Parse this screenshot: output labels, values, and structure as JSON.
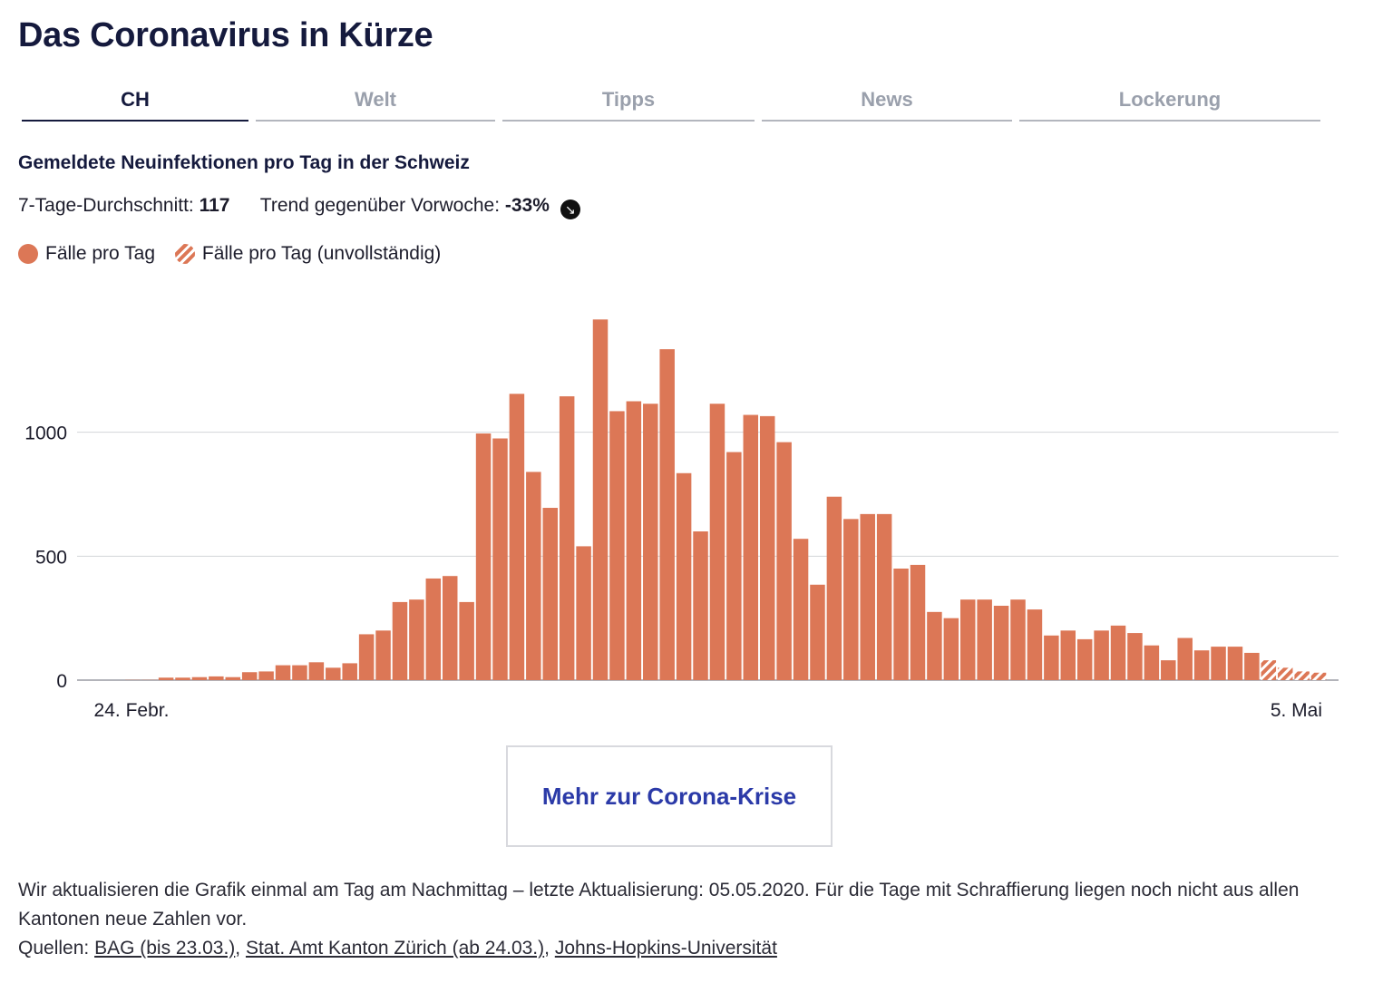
{
  "page": {
    "title": "Das Coronavirus in Kürze"
  },
  "tabs": [
    {
      "label": "CH",
      "active": true
    },
    {
      "label": "Welt",
      "active": false
    },
    {
      "label": "Tipps",
      "active": false
    },
    {
      "label": "News",
      "active": false
    },
    {
      "label": "Lockerung",
      "active": false
    }
  ],
  "header": {
    "subtitle": "Gemeldete Neuinfektionen pro Tag in der Schweiz",
    "avg_label": "7-Tage-Durchschnitt:",
    "avg_value": "117",
    "trend_label": "Trend gegenüber Vorwoche:",
    "trend_value": "-33%",
    "trend_icon": "arrow-down-right-icon"
  },
  "legend": {
    "solid_label": "Fälle pro Tag",
    "hatched_label": "Fälle pro Tag (unvollständig)"
  },
  "colors": {
    "bar": "#dc7756",
    "grid": "#d3d4d8",
    "accent": "#2b3aa8",
    "title": "#151a3d"
  },
  "chart_data": {
    "type": "bar",
    "title": "Gemeldete Neuinfektionen pro Tag in der Schweiz",
    "xlabel": "",
    "ylabel": "",
    "x_tick_labels": [
      "24. Febr.",
      "5. Mai"
    ],
    "y_ticks": [
      0,
      500,
      1000
    ],
    "ylim": [
      0,
      1500
    ],
    "series": [
      {
        "name": "Fälle pro Tag",
        "values": [
          1,
          1,
          10,
          10,
          12,
          15,
          12,
          32,
          35,
          60,
          60,
          72,
          50,
          68,
          185,
          200,
          315,
          325,
          410,
          420,
          315,
          995,
          975,
          1155,
          840,
          695,
          1145,
          540,
          1455,
          1085,
          1125,
          1115,
          1335,
          835,
          600,
          1115,
          920,
          1070,
          1065,
          960,
          570,
          385,
          740,
          650,
          670,
          670,
          450,
          465,
          275,
          250,
          325,
          325,
          300,
          325,
          285,
          180,
          200,
          165,
          200,
          220,
          190,
          140,
          80,
          170,
          120,
          135,
          135,
          110,
          0,
          0,
          0,
          0
        ]
      },
      {
        "name": "Fälle pro Tag (unvollständig)",
        "values": [
          0,
          0,
          0,
          0,
          0,
          0,
          0,
          0,
          0,
          0,
          0,
          0,
          0,
          0,
          0,
          0,
          0,
          0,
          0,
          0,
          0,
          0,
          0,
          0,
          0,
          0,
          0,
          0,
          0,
          0,
          0,
          0,
          0,
          0,
          0,
          0,
          0,
          0,
          0,
          0,
          0,
          0,
          0,
          0,
          0,
          0,
          0,
          0,
          0,
          0,
          0,
          0,
          0,
          0,
          0,
          0,
          0,
          0,
          0,
          0,
          0,
          0,
          0,
          0,
          0,
          0,
          0,
          0,
          80,
          50,
          35,
          30
        ]
      }
    ]
  },
  "cta": {
    "label": "Mehr zur Corona-Krise"
  },
  "footer": {
    "text": "Wir aktualisieren die Grafik einmal am Tag am Nachmittag – letzte Aktualisierung: 05.05.2020. Für die Tage mit Schraffierung liegen noch nicht aus allen Kantonen neue Zahlen vor.",
    "sources_label": "Quellen:",
    "sources": [
      "BAG (bis 23.03.)",
      "Stat. Amt Kanton Zürich (ab 24.03.)",
      "Johns-Hopkins-Universität"
    ]
  }
}
